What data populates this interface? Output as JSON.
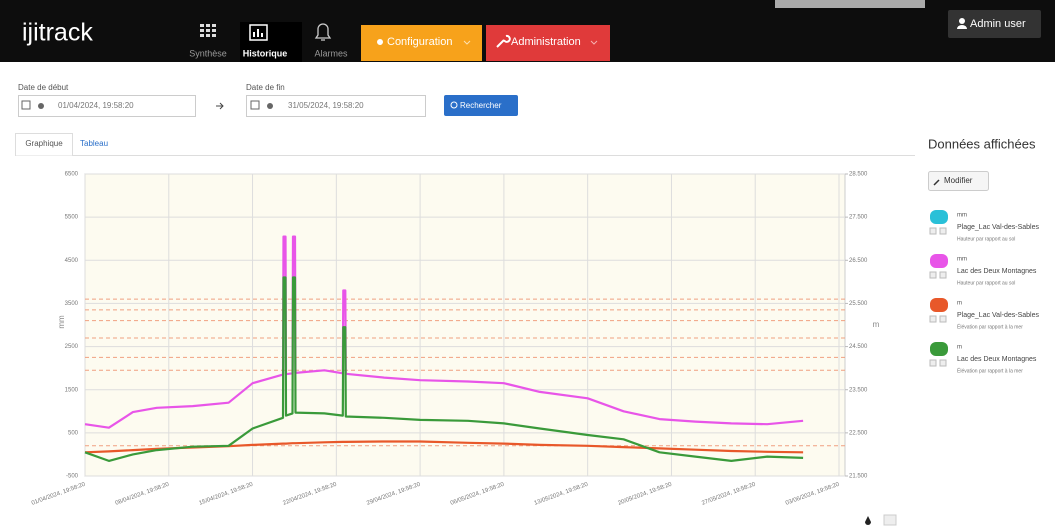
{
  "navbar": {
    "logo": "ijitrack",
    "items": [
      "Synthèse",
      "Historique",
      "Alarmes"
    ],
    "configuration": "Configuration",
    "administration": "Administration",
    "user": "Admin user"
  },
  "filters": {
    "start_label": "Date de début",
    "start_value": "01/04/2024, 19:58:20",
    "end_label": "Date de fin",
    "end_value": "31/05/2024, 19:58:20",
    "search": "Rechercher"
  },
  "tabs": [
    "Graphique",
    "Tableau"
  ],
  "panel": {
    "title": "Données affichées",
    "edit": "Modifier"
  },
  "chart_data": {
    "type": "line",
    "ylabel": "mm",
    "y2label": "m",
    "ylim": [
      -500,
      6500
    ],
    "yticks": [
      -500,
      500,
      1500,
      2500,
      3500,
      4500,
      5500,
      6500
    ],
    "y2lim": [
      21.5,
      28.5
    ],
    "y2ticks": [
      {
        "value": 21.5,
        "label": "21.500"
      },
      {
        "value": 22.5,
        "label": "22.500"
      },
      {
        "value": 23.5,
        "label": "23.500"
      },
      {
        "value": 24.5,
        "label": "24.500"
      },
      {
        "value": 25.5,
        "label": "25.500"
      },
      {
        "value": 26.5,
        "label": "26.500"
      },
      {
        "value": 27.5,
        "label": "27.500"
      },
      {
        "value": 28.5,
        "label": "28.500"
      }
    ],
    "xlim": [
      "2024-04-01T19:58:20",
      "2024-06-04T08:00:00"
    ],
    "xticks": [
      {
        "value": "2024-04-01T19:58:20",
        "label": "01/04/2024, 19:58:20"
      },
      {
        "value": "2024-04-08T19:58:20",
        "label": "08/04/2024, 19:58:20"
      },
      {
        "value": "2024-04-15T19:58:20",
        "label": "15/04/2024, 19:58:20"
      },
      {
        "value": "2024-04-22T19:58:20",
        "label": "22/04/2024, 19:58:20"
      },
      {
        "value": "2024-04-29T19:58:20",
        "label": "29/04/2024, 19:58:20"
      },
      {
        "value": "2024-05-06T19:58:20",
        "label": "06/05/2024, 19:58:20"
      },
      {
        "value": "2024-05-13T19:58:20",
        "label": "13/05/2024, 19:58:20"
      },
      {
        "value": "2024-05-20T19:58:20",
        "label": "20/05/2024, 19:58:20"
      },
      {
        "value": "2024-05-27T19:58:20",
        "label": "27/05/2024, 19:58:20"
      },
      {
        "value": "2024-06-03T19:58:20",
        "label": "03/06/2024, 19:58:20"
      }
    ],
    "grid": true,
    "thresholds": [
      25.6,
      25.35,
      25.1,
      24.7,
      24.25,
      23.95,
      22.2
    ],
    "threshold_color": "#f0a080",
    "x": [
      "2024-04-01T19:58",
      "2024-04-03T19:58",
      "2024-04-05T19:58",
      "2024-04-07T19:58",
      "2024-04-10T19:58",
      "2024-04-13T19:58",
      "2024-04-15T19:58",
      "2024-04-18T09:00",
      "2024-04-18T10:00",
      "2024-04-18T14:00",
      "2024-04-18T15:00",
      "2024-04-19T04:00",
      "2024-04-19T05:00",
      "2024-04-19T09:00",
      "2024-04-19T10:00",
      "2024-04-21T19:58",
      "2024-04-23T09:00",
      "2024-04-23T10:00",
      "2024-04-23T14:00",
      "2024-04-23T15:00",
      "2024-04-26T19:58",
      "2024-04-29T19:58",
      "2024-05-03T19:58",
      "2024-05-06T19:58",
      "2024-05-09T19:58",
      "2024-05-13T19:58",
      "2024-05-16T19:58",
      "2024-05-19T19:58",
      "2024-05-22T19:58",
      "2024-05-25T19:58",
      "2024-05-28T19:58",
      "2024-05-31T19:58"
    ],
    "series": [
      {
        "name": "Plage_Lac Val-des-Sables",
        "unit": "mm",
        "description": "Hauteur par rapport au sol",
        "color": "#29c0d8",
        "axis": "y",
        "values": [
          null,
          null,
          null,
          null,
          null,
          null,
          null,
          null,
          null,
          null,
          null,
          null,
          null,
          null,
          null,
          null,
          null,
          null,
          null,
          null,
          null,
          null,
          null,
          null,
          null,
          null,
          null,
          null,
          null,
          null,
          null,
          null
        ]
      },
      {
        "name": "Lac des Deux Montagnes",
        "unit": "mm",
        "description": "Hauteur par rapport au sol",
        "color": "#e855e8",
        "axis": "y",
        "values": [
          700,
          620,
          980,
          1080,
          1120,
          1200,
          1650,
          1850,
          5050,
          5050,
          1860,
          1880,
          5050,
          5050,
          1890,
          1950,
          1880,
          3800,
          3800,
          1870,
          1780,
          1720,
          1690,
          1650,
          1450,
          1300,
          1000,
          820,
          760,
          720,
          700,
          780
        ]
      },
      {
        "name": "Plage_Lac Val-des-Sables",
        "unit": "m",
        "description": "Élévation par rapport à la mer",
        "color": "#e8582a",
        "axis": "y2",
        "values": [
          22.05,
          22.07,
          22.1,
          22.13,
          22.16,
          22.19,
          22.22,
          22.25,
          22.25,
          22.25,
          22.25,
          22.26,
          22.26,
          22.26,
          22.26,
          22.28,
          22.29,
          22.29,
          22.29,
          22.29,
          22.3,
          22.3,
          22.27,
          22.25,
          22.22,
          22.2,
          22.17,
          22.14,
          22.11,
          22.08,
          22.06,
          22.05
        ]
      },
      {
        "name": "Lac des Deux Montagnes",
        "unit": "m",
        "description": "Élévation par rapport à la mer",
        "color": "#3a9a3a",
        "axis": "y2",
        "values": [
          22.05,
          21.85,
          22.0,
          22.1,
          22.18,
          22.2,
          22.6,
          22.85,
          26.1,
          26.1,
          22.9,
          22.95,
          26.1,
          26.1,
          22.97,
          22.95,
          22.9,
          24.95,
          24.95,
          22.88,
          22.85,
          22.8,
          22.78,
          22.72,
          22.6,
          22.45,
          22.35,
          22.05,
          21.95,
          21.85,
          21.95,
          21.92
        ]
      }
    ]
  }
}
